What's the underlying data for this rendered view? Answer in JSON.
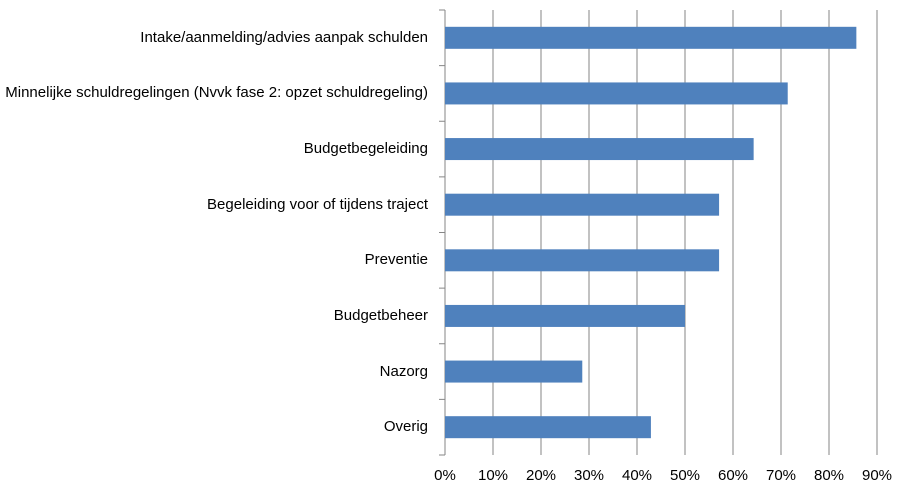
{
  "chart_data": {
    "type": "barh",
    "categories": [
      "Intake/aanmelding/advies aanpak schulden",
      "Minnelijke schuldregelingen (Nvvk fase 2: opzet schuldregeling)",
      "Budgetbegeleiding",
      "Begeleiding voor of tijdens traject",
      "Preventie",
      "Budgetbeheer",
      "Nazorg",
      "Overig"
    ],
    "values": [
      85.7,
      71.4,
      64.3,
      57.1,
      57.1,
      50,
      28.6,
      42.9
    ],
    "color": "#4f81bd",
    "xlim": [
      0,
      90
    ],
    "xticks": [
      {
        "value": 0,
        "label": "0%"
      },
      {
        "value": 10,
        "label": "10%"
      },
      {
        "value": 20,
        "label": "20%"
      },
      {
        "value": 30,
        "label": "30%"
      },
      {
        "value": 40,
        "label": "40%"
      },
      {
        "value": 50,
        "label": "50%"
      },
      {
        "value": 60,
        "label": "60%"
      },
      {
        "value": 70,
        "label": "70%"
      },
      {
        "value": 80,
        "label": "80%"
      },
      {
        "value": 90,
        "label": "90%"
      }
    ],
    "grid": true
  }
}
